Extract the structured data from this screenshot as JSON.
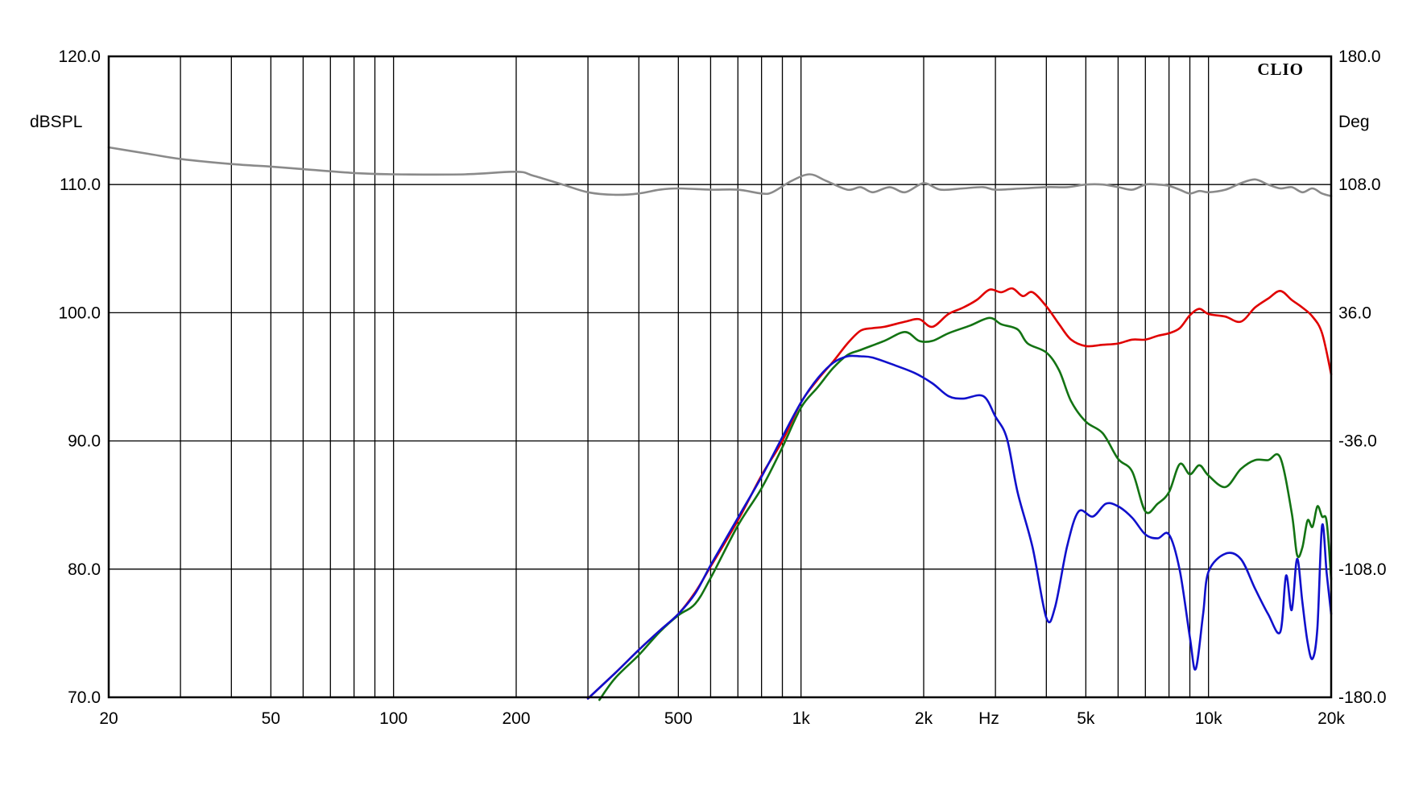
{
  "chart_data": {
    "type": "line",
    "brand": "CLIO",
    "xlabel": "Hz",
    "ylabel_left": "dBSPL",
    "ylabel_right": "Deg",
    "x_scale": "log",
    "xlim": [
      20,
      20000
    ],
    "ylim": [
      70,
      120
    ],
    "ylim_right": [
      -180,
      180
    ],
    "grid": true,
    "x_ticks": [
      {
        "value": 20,
        "label": "20"
      },
      {
        "value": 50,
        "label": "50"
      },
      {
        "value": 100,
        "label": "100"
      },
      {
        "value": 200,
        "label": "200"
      },
      {
        "value": 500,
        "label": "500"
      },
      {
        "value": 1000,
        "label": "1k"
      },
      {
        "value": 2000,
        "label": "2k"
      },
      {
        "value": 5000,
        "label": "5k"
      },
      {
        "value": 10000,
        "label": "10k"
      },
      {
        "value": 20000,
        "label": "20k"
      }
    ],
    "y_ticks_left": [
      "70.0",
      "80.0",
      "90.0",
      "100.0",
      "110.0",
      "120.0"
    ],
    "y_ticks_right": [
      "-180.0",
      "-108.0",
      "-36.0",
      "36.0",
      "108.0",
      "180.0"
    ],
    "colors": {
      "gray": "#8a8a8a",
      "red": "#e00000",
      "green": "#137313",
      "blue": "#1010cc"
    },
    "series": [
      {
        "color": "gray",
        "points": [
          [
            20,
            112.9
          ],
          [
            25,
            112.4
          ],
          [
            30,
            112.0
          ],
          [
            40,
            111.6
          ],
          [
            50,
            111.4
          ],
          [
            60,
            111.2
          ],
          [
            80,
            110.9
          ],
          [
            100,
            110.8
          ],
          [
            150,
            110.8
          ],
          [
            200,
            111.0
          ],
          [
            220,
            110.7
          ],
          [
            260,
            110.0
          ],
          [
            300,
            109.4
          ],
          [
            350,
            109.2
          ],
          [
            400,
            109.3
          ],
          [
            450,
            109.6
          ],
          [
            500,
            109.7
          ],
          [
            600,
            109.6
          ],
          [
            700,
            109.6
          ],
          [
            800,
            109.3
          ],
          [
            850,
            109.4
          ],
          [
            950,
            110.3
          ],
          [
            1050,
            110.8
          ],
          [
            1150,
            110.3
          ],
          [
            1300,
            109.6
          ],
          [
            1400,
            109.8
          ],
          [
            1500,
            109.4
          ],
          [
            1650,
            109.8
          ],
          [
            1800,
            109.4
          ],
          [
            2000,
            110.1
          ],
          [
            2200,
            109.6
          ],
          [
            2500,
            109.7
          ],
          [
            2800,
            109.8
          ],
          [
            3000,
            109.6
          ],
          [
            3500,
            109.7
          ],
          [
            4000,
            109.8
          ],
          [
            4500,
            109.8
          ],
          [
            5000,
            110.0
          ],
          [
            5500,
            110.0
          ],
          [
            6000,
            109.8
          ],
          [
            6500,
            109.6
          ],
          [
            7000,
            110.0
          ],
          [
            7500,
            110.0
          ],
          [
            8000,
            109.9
          ],
          [
            8500,
            109.6
          ],
          [
            9000,
            109.3
          ],
          [
            9500,
            109.5
          ],
          [
            10000,
            109.4
          ],
          [
            11000,
            109.6
          ],
          [
            12000,
            110.1
          ],
          [
            13000,
            110.4
          ],
          [
            14000,
            110.0
          ],
          [
            15000,
            109.7
          ],
          [
            16000,
            109.8
          ],
          [
            17000,
            109.4
          ],
          [
            18000,
            109.7
          ],
          [
            19000,
            109.3
          ],
          [
            20000,
            109.1
          ]
        ]
      },
      {
        "color": "red",
        "points": [
          [
            300,
            69.9
          ],
          [
            350,
            71.9
          ],
          [
            400,
            73.7
          ],
          [
            450,
            75.2
          ],
          [
            500,
            76.5
          ],
          [
            550,
            78.2
          ],
          [
            600,
            80.2
          ],
          [
            700,
            83.8
          ],
          [
            800,
            87.3
          ],
          [
            900,
            90.0
          ],
          [
            1000,
            93.0
          ],
          [
            1100,
            94.8
          ],
          [
            1200,
            96.2
          ],
          [
            1300,
            97.6
          ],
          [
            1400,
            98.6
          ],
          [
            1500,
            98.8
          ],
          [
            1600,
            98.9
          ],
          [
            1800,
            99.3
          ],
          [
            1950,
            99.5
          ],
          [
            2100,
            98.9
          ],
          [
            2300,
            99.9
          ],
          [
            2500,
            100.4
          ],
          [
            2700,
            101.0
          ],
          [
            2900,
            101.8
          ],
          [
            3100,
            101.6
          ],
          [
            3300,
            101.9
          ],
          [
            3500,
            101.3
          ],
          [
            3700,
            101.6
          ],
          [
            4000,
            100.5
          ],
          [
            4300,
            99.1
          ],
          [
            4600,
            97.9
          ],
          [
            5000,
            97.4
          ],
          [
            5500,
            97.5
          ],
          [
            6000,
            97.6
          ],
          [
            6500,
            97.9
          ],
          [
            7000,
            97.9
          ],
          [
            7500,
            98.2
          ],
          [
            8000,
            98.4
          ],
          [
            8500,
            98.8
          ],
          [
            9000,
            99.8
          ],
          [
            9500,
            100.3
          ],
          [
            10000,
            99.9
          ],
          [
            11000,
            99.7
          ],
          [
            12000,
            99.3
          ],
          [
            13000,
            100.4
          ],
          [
            14000,
            101.1
          ],
          [
            15000,
            101.7
          ],
          [
            16000,
            101.0
          ],
          [
            17000,
            100.4
          ],
          [
            18000,
            99.7
          ],
          [
            19000,
            98.4
          ],
          [
            20000,
            95.2
          ]
        ]
      },
      {
        "color": "green",
        "points": [
          [
            320,
            69.8
          ],
          [
            350,
            71.5
          ],
          [
            400,
            73.3
          ],
          [
            450,
            75.1
          ],
          [
            500,
            76.4
          ],
          [
            550,
            77.3
          ],
          [
            600,
            79.3
          ],
          [
            700,
            83.4
          ],
          [
            800,
            86.3
          ],
          [
            900,
            89.5
          ],
          [
            1000,
            92.6
          ],
          [
            1100,
            94.2
          ],
          [
            1200,
            95.7
          ],
          [
            1300,
            96.7
          ],
          [
            1400,
            97.1
          ],
          [
            1600,
            97.8
          ],
          [
            1800,
            98.5
          ],
          [
            1950,
            97.8
          ],
          [
            2100,
            97.8
          ],
          [
            2300,
            98.4
          ],
          [
            2600,
            99.0
          ],
          [
            2900,
            99.6
          ],
          [
            3100,
            99.1
          ],
          [
            3400,
            98.7
          ],
          [
            3600,
            97.6
          ],
          [
            4000,
            96.9
          ],
          [
            4300,
            95.5
          ],
          [
            4600,
            93.1
          ],
          [
            5000,
            91.5
          ],
          [
            5500,
            90.6
          ],
          [
            6000,
            88.6
          ],
          [
            6500,
            87.6
          ],
          [
            7000,
            84.5
          ],
          [
            7500,
            85.1
          ],
          [
            8000,
            86.0
          ],
          [
            8500,
            88.2
          ],
          [
            9000,
            87.4
          ],
          [
            9500,
            88.1
          ],
          [
            10000,
            87.3
          ],
          [
            11000,
            86.4
          ],
          [
            12000,
            87.8
          ],
          [
            13000,
            88.5
          ],
          [
            14000,
            88.5
          ],
          [
            15000,
            88.7
          ],
          [
            16000,
            84.4
          ],
          [
            16500,
            81.1
          ],
          [
            17000,
            81.7
          ],
          [
            17500,
            83.8
          ],
          [
            18000,
            83.3
          ],
          [
            18500,
            84.9
          ],
          [
            19000,
            84.1
          ],
          [
            19500,
            83.7
          ],
          [
            20000,
            79.2
          ]
        ]
      },
      {
        "color": "blue",
        "points": [
          [
            300,
            69.9
          ],
          [
            350,
            71.9
          ],
          [
            400,
            73.7
          ],
          [
            450,
            75.2
          ],
          [
            500,
            76.5
          ],
          [
            550,
            78.1
          ],
          [
            600,
            80.3
          ],
          [
            700,
            84.0
          ],
          [
            800,
            87.2
          ],
          [
            900,
            90.3
          ],
          [
            1000,
            93.0
          ],
          [
            1100,
            94.9
          ],
          [
            1200,
            96.1
          ],
          [
            1300,
            96.6
          ],
          [
            1400,
            96.6
          ],
          [
            1500,
            96.5
          ],
          [
            1700,
            95.9
          ],
          [
            1900,
            95.3
          ],
          [
            2100,
            94.5
          ],
          [
            2300,
            93.5
          ],
          [
            2500,
            93.3
          ],
          [
            2800,
            93.5
          ],
          [
            3000,
            91.9
          ],
          [
            3200,
            90.2
          ],
          [
            3400,
            86.0
          ],
          [
            3700,
            81.7
          ],
          [
            4000,
            76.2
          ],
          [
            4200,
            77.0
          ],
          [
            4500,
            81.8
          ],
          [
            4800,
            84.5
          ],
          [
            5200,
            84.1
          ],
          [
            5600,
            85.1
          ],
          [
            6000,
            84.9
          ],
          [
            6500,
            84.0
          ],
          [
            7000,
            82.7
          ],
          [
            7500,
            82.4
          ],
          [
            8000,
            82.7
          ],
          [
            8500,
            79.9
          ],
          [
            9000,
            74.7
          ],
          [
            9300,
            72.2
          ],
          [
            9700,
            76.5
          ],
          [
            10000,
            79.8
          ],
          [
            11000,
            81.2
          ],
          [
            12000,
            80.8
          ],
          [
            13000,
            78.5
          ],
          [
            14000,
            76.5
          ],
          [
            15000,
            75.1
          ],
          [
            15500,
            79.5
          ],
          [
            16000,
            76.8
          ],
          [
            16500,
            80.8
          ],
          [
            17000,
            77.4
          ],
          [
            17500,
            74.3
          ],
          [
            18000,
            73.0
          ],
          [
            18500,
            75.4
          ],
          [
            19000,
            83.4
          ],
          [
            19500,
            79.7
          ],
          [
            20000,
            76.5
          ]
        ]
      }
    ]
  }
}
